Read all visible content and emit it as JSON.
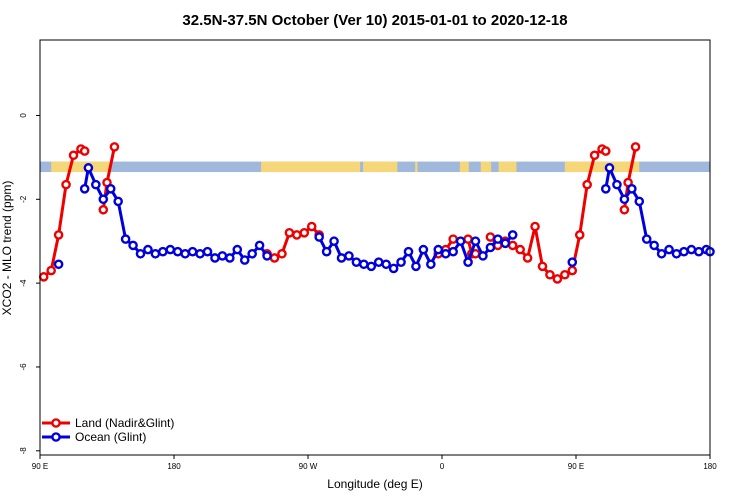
{
  "chart_data": {
    "type": "line",
    "title": "32.5N-37.5N October (Ver 10)   2015-01-01 to 2020-12-18",
    "xlabel": "Longitude (deg E)",
    "ylabel": "XCO2 - MLO trend (ppm)",
    "xlim": [
      90,
      540
    ],
    "ylim": [
      -8.1,
      1.8
    ],
    "x_ticks": [
      {
        "value": 90,
        "label": "90 E"
      },
      {
        "value": 180,
        "label": "180"
      },
      {
        "value": 270,
        "label": "90 W"
      },
      {
        "value": 360,
        "label": "0"
      },
      {
        "value": 450,
        "label": "90 E"
      },
      {
        "value": 540,
        "label": "180"
      }
    ],
    "y_ticks": [
      {
        "value": 0,
        "label": "0"
      },
      {
        "value": -2,
        "label": "-2"
      },
      {
        "value": -4,
        "label": "-4"
      },
      {
        "value": -6,
        "label": "-6"
      },
      {
        "value": -8,
        "label": "-8"
      }
    ],
    "legend_position": "bottom-left",
    "surface_band": {
      "y_range": [
        -1.35,
        -1.1
      ],
      "land_color": "#f5d77a",
      "ocean_color": "#a0b8dc",
      "land_segments": [
        [
          97.5,
          137.5
        ],
        [
          238.5,
          305
        ],
        [
          307,
          330
        ],
        [
          342,
          343.5
        ],
        [
          372,
          378
        ],
        [
          386,
          393
        ],
        [
          398,
          410
        ],
        [
          442.5,
          492.5
        ]
      ]
    },
    "series": [
      {
        "name": "Land (Nadir&Glint)",
        "color": "#ee0000",
        "segments": [
          [
            [
              92.5,
              -3.85
            ],
            [
              97.5,
              -3.7
            ],
            [
              102.5,
              -2.85
            ],
            [
              107.5,
              -1.65
            ],
            [
              112.5,
              -0.95
            ],
            [
              117.5,
              -0.8
            ],
            [
              120,
              -0.85
            ]
          ],
          [
            [
              132.5,
              -2.25
            ],
            [
              135,
              -1.6
            ],
            [
              140,
              -0.75
            ]
          ],
          [
            [
              242.5,
              -3.3
            ],
            [
              247.5,
              -3.4
            ],
            [
              252.5,
              -3.3
            ],
            [
              257.5,
              -2.8
            ],
            [
              262.5,
              -2.85
            ],
            [
              267.5,
              -2.8
            ],
            [
              272.5,
              -2.65
            ],
            [
              277.5,
              -2.85
            ]
          ],
          [
            [
              357.5,
              -3.3
            ],
            [
              362.5,
              -3.2
            ],
            [
              367.5,
              -2.95
            ]
          ],
          [
            [
              377.5,
              -2.95
            ],
            [
              380,
              -3.3
            ],
            [
              382.5,
              -3.3
            ]
          ],
          [
            [
              392.5,
              -2.9
            ],
            [
              397.5,
              -3.1
            ],
            [
              402.5,
              -3.0
            ],
            [
              407.5,
              -3.1
            ],
            [
              412.5,
              -3.2
            ],
            [
              417.5,
              -3.4
            ],
            [
              422.5,
              -2.65
            ],
            [
              427.5,
              -3.6
            ],
            [
              432.5,
              -3.8
            ],
            [
              437.5,
              -3.9
            ],
            [
              442.5,
              -3.8
            ],
            [
              447.5,
              -3.7
            ],
            [
              452.5,
              -2.85
            ],
            [
              457.5,
              -1.65
            ],
            [
              462.5,
              -0.95
            ],
            [
              467.5,
              -0.8
            ],
            [
              470,
              -0.85
            ]
          ],
          [
            [
              482.5,
              -2.25
            ],
            [
              485,
              -1.6
            ],
            [
              490,
              -0.75
            ]
          ]
        ]
      },
      {
        "name": "Ocean (Glint)",
        "color": "#0000dd",
        "segments": [
          [
            [
              102.5,
              -3.55
            ]
          ],
          [
            [
              120,
              -1.75
            ],
            [
              122.5,
              -1.25
            ],
            [
              127.5,
              -1.65
            ],
            [
              132.5,
              -2.0
            ],
            [
              137.5,
              -1.75
            ],
            [
              142.5,
              -2.05
            ],
            [
              147.5,
              -2.95
            ],
            [
              152.5,
              -3.1
            ],
            [
              157.5,
              -3.3
            ],
            [
              162.5,
              -3.2
            ],
            [
              167.5,
              -3.3
            ],
            [
              172.5,
              -3.25
            ],
            [
              177.5,
              -3.2
            ],
            [
              182.5,
              -3.25
            ],
            [
              187.5,
              -3.3
            ],
            [
              192.5,
              -3.25
            ],
            [
              197.5,
              -3.3
            ],
            [
              202.5,
              -3.25
            ],
            [
              207.5,
              -3.4
            ],
            [
              212.5,
              -3.35
            ],
            [
              217.5,
              -3.4
            ],
            [
              222.5,
              -3.2
            ],
            [
              227.5,
              -3.45
            ],
            [
              232.5,
              -3.3
            ],
            [
              237.5,
              -3.1
            ],
            [
              242.5,
              -3.35
            ]
          ],
          [
            [
              277.5,
              -2.9
            ],
            [
              282.5,
              -3.25
            ],
            [
              287.5,
              -3.0
            ],
            [
              292.5,
              -3.4
            ],
            [
              297.5,
              -3.35
            ],
            [
              302.5,
              -3.5
            ],
            [
              307.5,
              -3.55
            ],
            [
              312.5,
              -3.6
            ],
            [
              317.5,
              -3.5
            ],
            [
              322.5,
              -3.55
            ],
            [
              327.5,
              -3.65
            ],
            [
              332.5,
              -3.5
            ],
            [
              337.5,
              -3.25
            ],
            [
              342.5,
              -3.6
            ],
            [
              347.5,
              -3.2
            ],
            [
              352.5,
              -3.55
            ],
            [
              357.5,
              -3.2
            ],
            [
              362.5,
              -3.3
            ],
            [
              367.5,
              -3.25
            ],
            [
              372.5,
              -3.0
            ],
            [
              377.5,
              -3.5
            ],
            [
              382.5,
              -3.0
            ],
            [
              387.5,
              -3.35
            ],
            [
              392.5,
              -3.15
            ],
            [
              397.5,
              -2.95
            ],
            [
              402.5,
              -3.05
            ],
            [
              407.5,
              -2.85
            ]
          ],
          [
            [
              447.5,
              -3.5
            ]
          ],
          [
            [
              470,
              -1.75
            ],
            [
              472.5,
              -1.25
            ],
            [
              477.5,
              -1.65
            ],
            [
              482.5,
              -2.0
            ],
            [
              487.5,
              -1.75
            ],
            [
              492.5,
              -2.05
            ],
            [
              497.5,
              -2.95
            ],
            [
              502.5,
              -3.1
            ],
            [
              507.5,
              -3.3
            ],
            [
              512.5,
              -3.2
            ],
            [
              517.5,
              -3.3
            ],
            [
              522.5,
              -3.25
            ],
            [
              527.5,
              -3.2
            ],
            [
              532.5,
              -3.25
            ],
            [
              537.5,
              -3.2
            ],
            [
              540,
              -3.25
            ]
          ]
        ]
      }
    ]
  }
}
